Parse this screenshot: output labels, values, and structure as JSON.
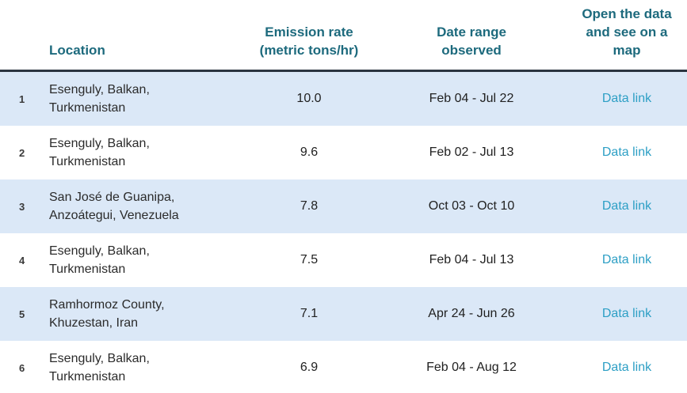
{
  "header": {
    "location_label": "Location",
    "emission_label": "Emission rate\n(metric tons/hr)",
    "date_label": "Date range\nobserved",
    "map_label": "Open the data\nand see on a\nmap"
  },
  "table": {
    "rows": [
      {
        "rank": "1",
        "location": "Esenguly, Balkan,\nTurkmenistan",
        "rate": "10.0",
        "date_range": "Feb 04 - Jul 22",
        "link_label": "Data link"
      },
      {
        "rank": "2",
        "location": "Esenguly, Balkan,\nTurkmenistan",
        "rate": "9.6",
        "date_range": "Feb 02 - Jul 13",
        "link_label": "Data link"
      },
      {
        "rank": "3",
        "location": "San José de Guanipa,\nAnzoátegui, Venezuela",
        "rate": "7.8",
        "date_range": "Oct 03 - Oct 10",
        "link_label": "Data link"
      },
      {
        "rank": "4",
        "location": "Esenguly, Balkan,\nTurkmenistan",
        "rate": "7.5",
        "date_range": "Feb 04 - Jul 13",
        "link_label": "Data link"
      },
      {
        "rank": "5",
        "location": "Ramhormoz County,\nKhuzestan, Iran",
        "rate": "7.1",
        "date_range": "Apr 24 - Jun 26",
        "link_label": "Data link"
      },
      {
        "rank": "6",
        "location": "Esenguly, Balkan,\nTurkmenistan",
        "rate": "6.9",
        "date_range": "Feb 04 - Aug 12",
        "link_label": "Data link"
      }
    ]
  },
  "colors": {
    "header_text": "#1d6a7d",
    "header_border": "#2b3440",
    "row_stripe": "#dbe8f7",
    "link": "#2d9fc5",
    "body_text": "#2b2b2b"
  }
}
